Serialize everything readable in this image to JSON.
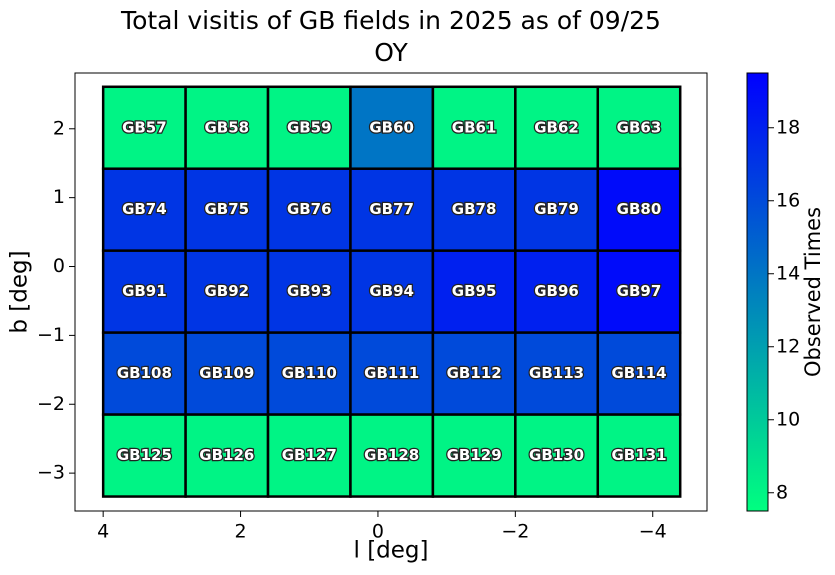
{
  "chart_data": {
    "type": "heatmap",
    "title": "Total visitis of GB fields in 2025 as of 09/25",
    "subtitle": "OY",
    "x_label": "l [deg]",
    "y_label": "b [deg]",
    "colorbar_label": "Observed Times",
    "colormap": "winter_r",
    "x_edges": [
      4.0,
      2.8,
      1.6,
      0.4,
      -0.8,
      -2.0,
      -3.2,
      -4.4
    ],
    "y_edges": [
      2.61,
      1.42,
      0.23,
      -0.96,
      -2.15,
      -3.34
    ],
    "labels": [
      [
        "GB57",
        "GB58",
        "GB59",
        "GB60",
        "GB61",
        "GB62",
        "GB63"
      ],
      [
        "GB74",
        "GB75",
        "GB76",
        "GB77",
        "GB78",
        "GB79",
        "GB80"
      ],
      [
        "GB91",
        "GB92",
        "GB93",
        "GB94",
        "GB95",
        "GB96",
        "GB97"
      ],
      [
        "GB108",
        "GB109",
        "GB110",
        "GB111",
        "GB112",
        "GB113",
        "GB114"
      ],
      [
        "GB125",
        "GB126",
        "GB127",
        "GB128",
        "GB129",
        "GB130",
        "GB131"
      ]
    ],
    "values": [
      [
        8,
        8,
        8,
        14,
        8,
        8,
        8
      ],
      [
        17,
        17,
        17,
        17,
        17,
        17,
        19
      ],
      [
        17,
        17,
        17,
        17,
        18,
        18,
        19
      ],
      [
        16,
        16,
        16,
        16,
        16,
        16,
        16
      ],
      [
        8,
        8,
        8,
        8,
        8,
        8,
        8
      ]
    ],
    "xlim": [
      4.41,
      -4.79
    ],
    "ylim": [
      -3.55,
      2.81
    ],
    "xticks": [
      4,
      2,
      0,
      {
        "value": -2,
        "label": "−2"
      },
      {
        "value": -4,
        "label": "−4"
      }
    ],
    "yticks": [
      2,
      1,
      0,
      {
        "value": -1,
        "label": "−1"
      },
      {
        "value": -2,
        "label": "−2"
      },
      {
        "value": -3,
        "label": "−3"
      }
    ],
    "clim": [
      7.5,
      19.5
    ],
    "cticks": [
      8,
      10,
      12,
      14,
      16,
      18
    ]
  }
}
